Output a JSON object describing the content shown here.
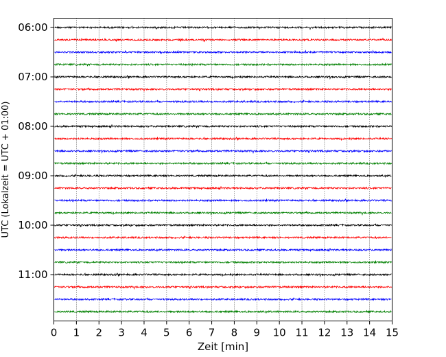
{
  "chart_data": {
    "type": "line",
    "title": "",
    "xlabel": "Zeit  [min]",
    "ylabel": "UTC (Lokalzeit = UTC + 01:00)",
    "xlim": [
      0,
      15
    ],
    "x_ticks": [
      "0",
      "1",
      "2",
      "3",
      "4",
      "5",
      "6",
      "7",
      "8",
      "9",
      "10",
      "11",
      "12",
      "13",
      "14",
      "15"
    ],
    "y_ticks": [
      "06:00",
      "07:00",
      "08:00",
      "09:00",
      "10:00",
      "11:00"
    ],
    "grid": "vertical dotted",
    "legend": "none",
    "colors": [
      "#000000",
      "#ff0000",
      "#0000ff",
      "#008000"
    ],
    "series": [
      {
        "start": "06:00",
        "color": "#000000"
      },
      {
        "start": "06:15",
        "color": "#ff0000"
      },
      {
        "start": "06:30",
        "color": "#0000ff"
      },
      {
        "start": "06:45",
        "color": "#008000"
      },
      {
        "start": "07:00",
        "color": "#000000"
      },
      {
        "start": "07:15",
        "color": "#ff0000"
      },
      {
        "start": "07:30",
        "color": "#0000ff"
      },
      {
        "start": "07:45",
        "color": "#008000"
      },
      {
        "start": "08:00",
        "color": "#000000"
      },
      {
        "start": "08:15",
        "color": "#ff0000"
      },
      {
        "start": "08:30",
        "color": "#0000ff"
      },
      {
        "start": "08:45",
        "color": "#008000"
      },
      {
        "start": "09:00",
        "color": "#000000"
      },
      {
        "start": "09:15",
        "color": "#ff0000"
      },
      {
        "start": "09:30",
        "color": "#0000ff"
      },
      {
        "start": "09:45",
        "color": "#008000"
      },
      {
        "start": "10:00",
        "color": "#000000"
      },
      {
        "start": "10:15",
        "color": "#ff0000"
      },
      {
        "start": "10:30",
        "color": "#0000ff"
      },
      {
        "start": "10:45",
        "color": "#008000"
      },
      {
        "start": "11:00",
        "color": "#000000"
      },
      {
        "start": "11:15",
        "color": "#ff0000"
      },
      {
        "start": "11:30",
        "color": "#0000ff"
      },
      {
        "start": "11:45",
        "color": "#008000"
      }
    ]
  }
}
